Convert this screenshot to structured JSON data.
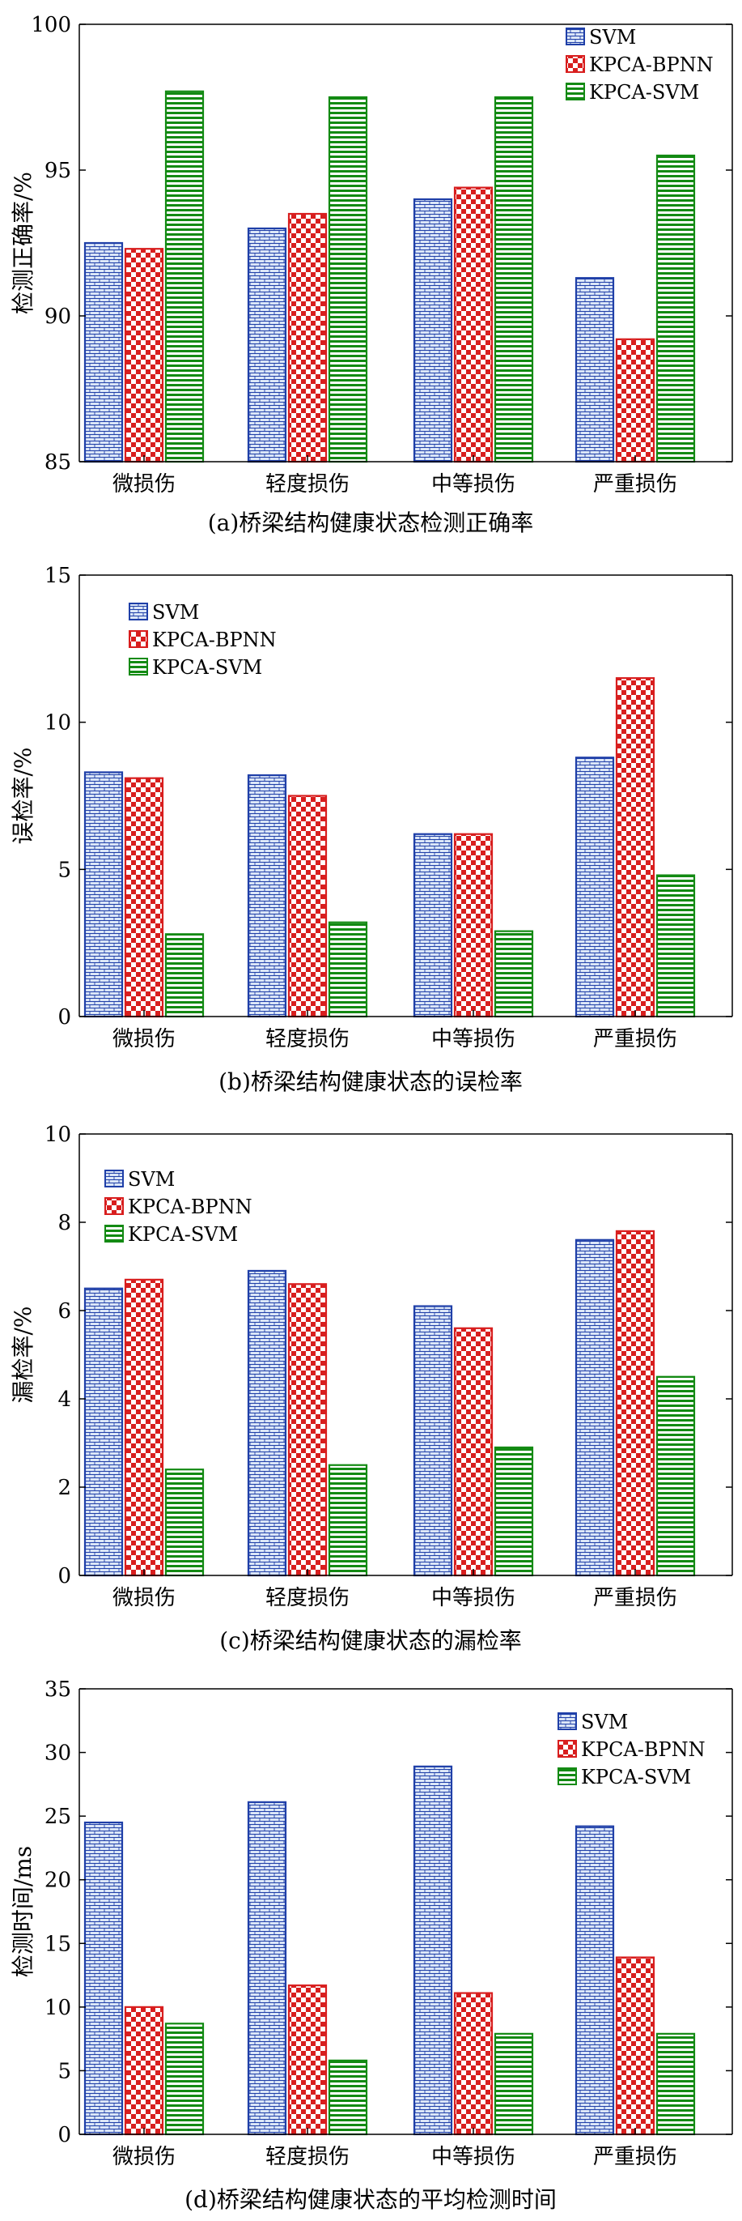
{
  "chart_data": [
    {
      "type": "bar",
      "categories": [
        "微损伤",
        "轻度损伤",
        "中等损伤",
        "严重损伤"
      ],
      "series": [
        {
          "name": "SVM",
          "values": [
            92.5,
            93.0,
            94.0,
            91.3
          ]
        },
        {
          "name": "KPCA-BPNN",
          "values": [
            92.3,
            93.5,
            94.4,
            89.2
          ]
        },
        {
          "name": "KPCA-SVM",
          "values": [
            97.7,
            97.5,
            97.5,
            95.5
          ]
        }
      ],
      "title": "(a)桥梁结构健康状态检测正确率",
      "xlabel": "",
      "ylabel": "检测正确率/%",
      "ylim": [
        85,
        100
      ],
      "yticks": [
        85,
        90,
        95,
        100
      ],
      "grid": false,
      "legend": "top-right"
    },
    {
      "type": "bar",
      "categories": [
        "微损伤",
        "轻度损伤",
        "中等损伤",
        "严重损伤"
      ],
      "series": [
        {
          "name": "SVM",
          "values": [
            8.3,
            8.2,
            6.2,
            8.8
          ]
        },
        {
          "name": "KPCA-BPNN",
          "values": [
            8.1,
            7.5,
            6.2,
            11.5
          ]
        },
        {
          "name": "KPCA-SVM",
          "values": [
            2.8,
            3.2,
            2.9,
            4.8
          ]
        }
      ],
      "title": "(b)桥梁结构健康状态的误检率",
      "xlabel": "",
      "ylabel": "误检率/%",
      "ylim": [
        0,
        15
      ],
      "yticks": [
        0,
        5,
        10,
        15
      ],
      "grid": false,
      "legend": "top-left"
    },
    {
      "type": "bar",
      "categories": [
        "微损伤",
        "轻度损伤",
        "中等损伤",
        "严重损伤"
      ],
      "series": [
        {
          "name": "SVM",
          "values": [
            6.5,
            6.9,
            6.1,
            7.6
          ]
        },
        {
          "name": "KPCA-BPNN",
          "values": [
            6.7,
            6.6,
            5.6,
            7.8
          ]
        },
        {
          "name": "KPCA-SVM",
          "values": [
            2.4,
            2.5,
            2.9,
            4.5
          ]
        }
      ],
      "title": "(c)桥梁结构健康状态的漏检率",
      "xlabel": "",
      "ylabel": "漏检率/%",
      "ylim": [
        0,
        10
      ],
      "yticks": [
        0,
        2,
        4,
        6,
        8,
        10
      ],
      "grid": false,
      "legend": "top-left"
    },
    {
      "type": "bar",
      "categories": [
        "微损伤",
        "轻度损伤",
        "中等损伤",
        "严重损伤"
      ],
      "series": [
        {
          "name": "SVM",
          "values": [
            24.5,
            26.1,
            28.9,
            24.2
          ]
        },
        {
          "name": "KPCA-BPNN",
          "values": [
            10.0,
            11.7,
            11.1,
            13.9
          ]
        },
        {
          "name": "KPCA-SVM",
          "values": [
            8.7,
            5.8,
            7.9,
            7.9
          ]
        }
      ],
      "title": "(d)桥梁结构健康状态的平均检测时间",
      "xlabel": "",
      "ylabel": "检测时间/ms",
      "ylim": [
        0,
        35
      ],
      "yticks": [
        0,
        5,
        10,
        15,
        20,
        25,
        30,
        35
      ],
      "grid": false,
      "legend": "top-right"
    }
  ],
  "colors": {
    "svm_edge": "#1f3fa8",
    "svm_fill": "#dbe6f7",
    "bpnn_edge": "#d81e1e",
    "bpnn_fill": "#ffffff",
    "svmk_edge": "#138a13",
    "svmk_fill": "#ffffff",
    "axis": "#000000"
  }
}
